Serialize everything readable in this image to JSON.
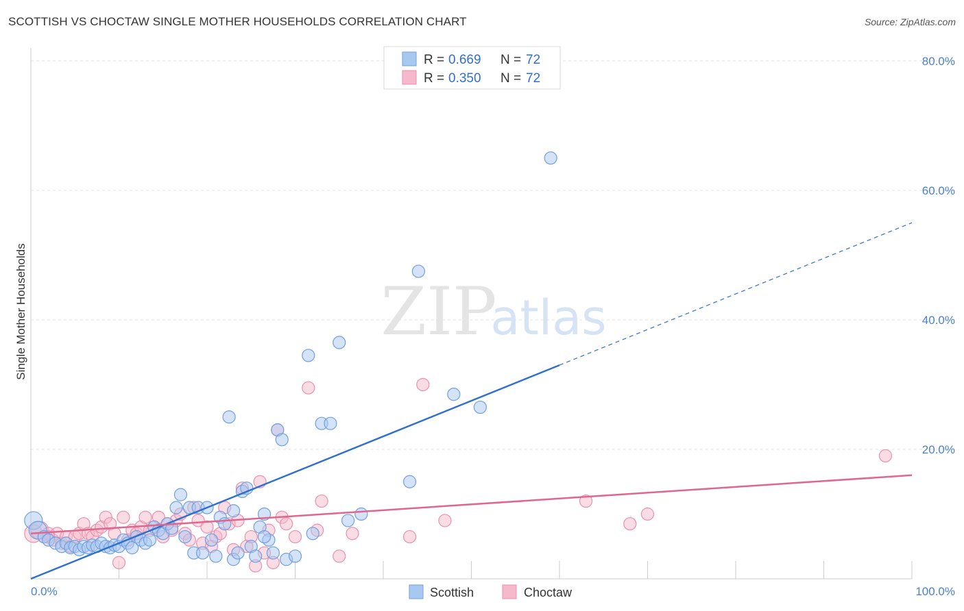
{
  "title": "SCOTTISH VS CHOCTAW SINGLE MOTHER HOUSEHOLDS CORRELATION CHART",
  "source": "Source: ZipAtlas.com",
  "watermark": {
    "zip": "ZIP",
    "atlas": "atlas"
  },
  "colors": {
    "scottish_fill": "#a9c8f0",
    "scottish_stroke": "#6f9fe0",
    "scottish_line": "#2f6fd0",
    "choctaw_fill": "#f6b9cc",
    "choctaw_stroke": "#e890ad",
    "choctaw_line": "#e06690",
    "grid": "#e3e3e3",
    "tick_text": "#4a7fd0"
  },
  "legend": {
    "r_label": "R =",
    "n_label": "N =",
    "rows": [
      {
        "r": "0.669",
        "n": "72"
      },
      {
        "r": "0.350",
        "n": "72"
      }
    ]
  },
  "chart_data": {
    "type": "scatter",
    "title": "SCOTTISH VS CHOCTAW SINGLE MOTHER HOUSEHOLDS CORRELATION CHART",
    "xlabel": "",
    "ylabel": "Single Mother Households",
    "xlim": [
      0,
      100
    ],
    "ylim": [
      0,
      82
    ],
    "x_tick_labels": [
      "0.0%",
      "100.0%"
    ],
    "y_ticks": [
      20,
      40,
      60,
      80
    ],
    "y_tick_labels": [
      "20.0%",
      "40.0%",
      "60.0%",
      "80.0%"
    ],
    "grid": true,
    "legend_position": "top-center",
    "series": [
      {
        "name": "Scottish",
        "points": [
          [
            0.3,
            9.0
          ],
          [
            0.8,
            7.5
          ],
          [
            1.5,
            6.5
          ],
          [
            2.0,
            6.0
          ],
          [
            2.8,
            5.5
          ],
          [
            3.5,
            5.0
          ],
          [
            4.0,
            5.5
          ],
          [
            4.5,
            4.8
          ],
          [
            5.0,
            5.0
          ],
          [
            5.5,
            4.5
          ],
          [
            6.0,
            5.0
          ],
          [
            6.5,
            4.8
          ],
          [
            7.0,
            5.2
          ],
          [
            7.5,
            5.0
          ],
          [
            8.0,
            5.5
          ],
          [
            8.5,
            5.0
          ],
          [
            9.0,
            4.8
          ],
          [
            9.5,
            5.2
          ],
          [
            10.0,
            5.0
          ],
          [
            10.5,
            6.0
          ],
          [
            11.0,
            5.5
          ],
          [
            11.5,
            4.8
          ],
          [
            12.0,
            6.5
          ],
          [
            12.5,
            6.0
          ],
          [
            13.0,
            5.5
          ],
          [
            13.5,
            6.0
          ],
          [
            14.0,
            8.0
          ],
          [
            14.5,
            7.5
          ],
          [
            15.0,
            7.0
          ],
          [
            15.5,
            8.5
          ],
          [
            16.0,
            7.8
          ],
          [
            16.5,
            11.0
          ],
          [
            17.0,
            13.0
          ],
          [
            17.5,
            6.5
          ],
          [
            18.0,
            11.0
          ],
          [
            18.5,
            4.0
          ],
          [
            19.0,
            11.0
          ],
          [
            19.5,
            4.0
          ],
          [
            20.0,
            11.0
          ],
          [
            20.5,
            6.0
          ],
          [
            21.0,
            3.5
          ],
          [
            21.5,
            9.5
          ],
          [
            22.0,
            8.5
          ],
          [
            22.5,
            25.0
          ],
          [
            23.0,
            3.0
          ],
          [
            23.5,
            4.0
          ],
          [
            24.0,
            13.5
          ],
          [
            24.5,
            14.0
          ],
          [
            25.0,
            5.0
          ],
          [
            25.5,
            3.5
          ],
          [
            26.0,
            8.0
          ],
          [
            26.5,
            10.0
          ],
          [
            27.0,
            6.0
          ],
          [
            27.5,
            4.0
          ],
          [
            28.0,
            23.0
          ],
          [
            28.5,
            21.5
          ],
          [
            29.0,
            3.0
          ],
          [
            30.0,
            3.5
          ],
          [
            31.5,
            34.5
          ],
          [
            32.0,
            7.0
          ],
          [
            33.0,
            24.0
          ],
          [
            34.0,
            24.0
          ],
          [
            35.0,
            36.5
          ],
          [
            36.0,
            9.0
          ],
          [
            37.5,
            10.0
          ],
          [
            43.0,
            15.0
          ],
          [
            44.0,
            47.5
          ],
          [
            48.0,
            28.5
          ],
          [
            51.0,
            26.5
          ],
          [
            59.0,
            65.0
          ],
          [
            23.0,
            10.5
          ],
          [
            26.5,
            6.5
          ]
        ]
      },
      {
        "name": "Choctaw",
        "points": [
          [
            0.3,
            7.0
          ],
          [
            1.0,
            7.5
          ],
          [
            1.5,
            6.5
          ],
          [
            2.0,
            7.0
          ],
          [
            2.5,
            6.0
          ],
          [
            3.0,
            7.0
          ],
          [
            3.5,
            5.5
          ],
          [
            4.0,
            6.5
          ],
          [
            4.5,
            5.0
          ],
          [
            5.0,
            6.5
          ],
          [
            5.5,
            7.0
          ],
          [
            6.0,
            8.5
          ],
          [
            6.5,
            7.0
          ],
          [
            7.0,
            6.5
          ],
          [
            7.5,
            7.5
          ],
          [
            8.0,
            8.0
          ],
          [
            8.5,
            9.5
          ],
          [
            9.0,
            8.5
          ],
          [
            9.5,
            7.0
          ],
          [
            10.0,
            2.5
          ],
          [
            10.5,
            9.5
          ],
          [
            11.0,
            6.0
          ],
          [
            11.5,
            7.5
          ],
          [
            12.0,
            7.0
          ],
          [
            12.5,
            8.0
          ],
          [
            13.0,
            9.5
          ],
          [
            13.5,
            7.5
          ],
          [
            14.0,
            8.0
          ],
          [
            14.5,
            9.5
          ],
          [
            15.0,
            6.5
          ],
          [
            15.5,
            8.5
          ],
          [
            16.0,
            7.5
          ],
          [
            16.5,
            9.0
          ],
          [
            17.0,
            10.0
          ],
          [
            17.5,
            7.0
          ],
          [
            18.0,
            6.0
          ],
          [
            18.5,
            11.0
          ],
          [
            19.0,
            9.0
          ],
          [
            19.5,
            5.5
          ],
          [
            20.0,
            8.0
          ],
          [
            20.5,
            5.0
          ],
          [
            21.0,
            6.5
          ],
          [
            21.5,
            7.0
          ],
          [
            22.0,
            11.0
          ],
          [
            22.5,
            8.5
          ],
          [
            23.0,
            4.5
          ],
          [
            23.5,
            9.0
          ],
          [
            24.0,
            14.0
          ],
          [
            24.5,
            5.0
          ],
          [
            25.0,
            6.5
          ],
          [
            25.5,
            2.0
          ],
          [
            26.0,
            15.0
          ],
          [
            26.5,
            4.0
          ],
          [
            27.0,
            7.5
          ],
          [
            27.5,
            2.5
          ],
          [
            28.0,
            23.0
          ],
          [
            28.5,
            9.5
          ],
          [
            29.0,
            8.5
          ],
          [
            30.0,
            6.5
          ],
          [
            31.5,
            29.5
          ],
          [
            32.5,
            7.5
          ],
          [
            33.0,
            12.0
          ],
          [
            35.0,
            3.5
          ],
          [
            36.5,
            7.0
          ],
          [
            43.0,
            6.5
          ],
          [
            44.5,
            30.0
          ],
          [
            47.0,
            9.0
          ],
          [
            63.0,
            12.0
          ],
          [
            68.0,
            8.5
          ],
          [
            70.0,
            10.0
          ],
          [
            97.0,
            19.0
          ],
          [
            2.0,
            6.5
          ]
        ]
      }
    ],
    "trendlines": [
      {
        "series": "Scottish",
        "x0": 0,
        "y0": 0,
        "x1": 60,
        "y1": 33,
        "extended_to_x": 100,
        "extended_y": 55
      },
      {
        "series": "Choctaw",
        "x0": 0,
        "y0": 7,
        "x1": 100,
        "y1": 16
      }
    ]
  }
}
